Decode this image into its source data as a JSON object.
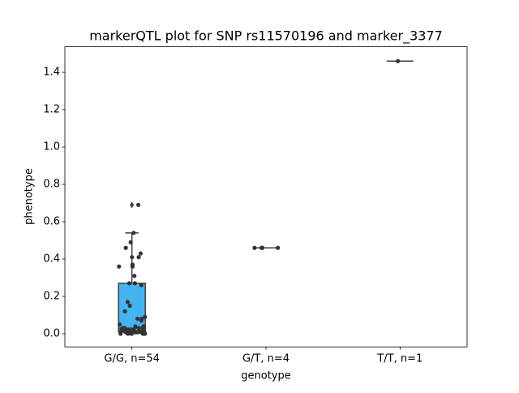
{
  "chart_data": {
    "type": "box",
    "title": "markerQTL plot for SNP rs11570196 and marker_3377",
    "x_label": "genotype",
    "y_label": "phenotype",
    "categories": [
      "G/G, n=54",
      "G/T, n=4",
      "T/T, n=1"
    ],
    "ylim": [
      -0.0705,
      1.537
    ],
    "yticks": [
      {
        "value": 0,
        "label": "0.0"
      },
      0.2,
      0.4,
      0.6,
      0.8,
      {
        "value": 1,
        "label": "1.0"
      },
      1.2,
      1.4
    ],
    "point_color": "#333333",
    "line_color": "#3f3f3f",
    "boxes": [
      {
        "color": "#45b3ef",
        "whisker_low": 0.0,
        "q1": 0.01,
        "median": 0.03,
        "q3": 0.27,
        "whisker_high": 0.54,
        "outliers": [
          0.69
        ],
        "points": [
          0.69,
          0.54,
          0.49,
          0.46,
          0.43,
          0.41,
          0.41,
          0.37,
          0.36,
          0.36,
          0.31,
          0.27,
          0.27,
          0.26,
          0.17,
          0.15,
          0.12,
          0.09,
          0.08,
          0.08,
          0.07,
          0.05,
          0.04,
          0.04,
          0.03,
          0.03,
          0.03,
          0.03,
          0.02,
          0.02,
          0.02,
          0.02,
          0.02,
          0.02,
          0.02,
          0.01,
          0.01,
          0.01,
          0.01,
          0.01,
          0.01,
          0.01,
          0.01,
          0.01,
          0.01,
          0.01,
          0.01,
          0.01,
          0.0,
          0.0,
          0.0,
          0.0,
          0.0,
          0.0
        ]
      },
      {
        "color": "#ea9a3c",
        "whisker_low": 0.46,
        "q1": 0.46,
        "median": 0.46,
        "q3": 0.46,
        "whisker_high": 0.46,
        "outliers": [],
        "points": [
          0.46,
          0.46,
          0.46,
          0.46
        ]
      },
      {
        "color": "#4caf50",
        "whisker_low": 1.46,
        "q1": 1.46,
        "median": 1.46,
        "q3": 1.46,
        "whisker_high": 1.46,
        "outliers": [],
        "points": [
          1.46
        ]
      }
    ]
  }
}
